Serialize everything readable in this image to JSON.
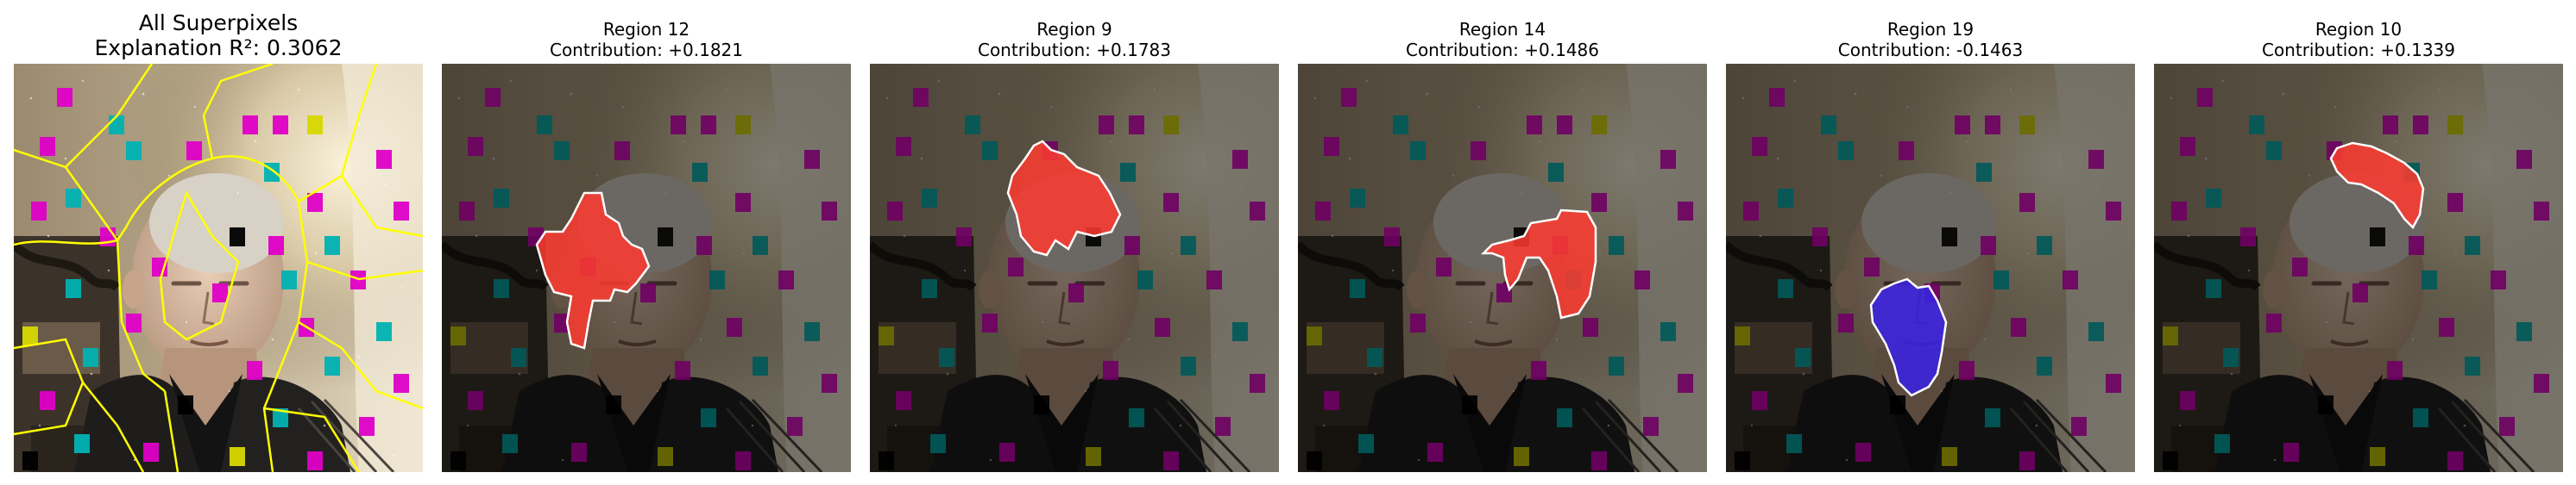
{
  "panels": [
    {
      "line1": "All Superpixels",
      "line2": "Explanation R²: 0.3062"
    },
    {
      "line1": "Region 12",
      "line2": "Contribution: +0.1821"
    },
    {
      "line1": "Region 9",
      "line2": "Contribution: +0.1783"
    },
    {
      "line1": "Region 14",
      "line2": "Contribution: +0.1486"
    },
    {
      "line1": "Region 19",
      "line2": "Contribution: -0.1463"
    },
    {
      "line1": "Region 10",
      "line2": "Contribution: +0.1339"
    }
  ],
  "colors": {
    "positive_highlight": "#ff3b30",
    "negative_highlight": "#3a22e0",
    "boundary": "#ffff00",
    "region_outline": "#ffffff"
  }
}
